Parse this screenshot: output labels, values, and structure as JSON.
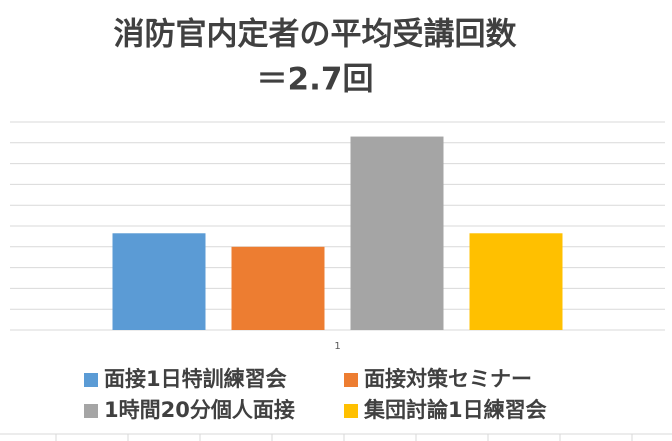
{
  "chart_data": {
    "type": "bar",
    "title": "消防官内定者の平均受講回数",
    "subtitle": "＝2.7回",
    "categories": [
      "1"
    ],
    "series": [
      {
        "name": "面接1日特訓練習会",
        "color": "#5b9bd5",
        "values": [
          4.65
        ]
      },
      {
        "name": "面接対策セミナー",
        "color": "#ed7d31",
        "values": [
          4.0
        ]
      },
      {
        "name": "1時間20分個人面接",
        "color": "#a5a5a5",
        "values": [
          9.3
        ]
      },
      {
        "name": "集団討論1日練習会",
        "color": "#ffc000",
        "values": [
          4.65
        ]
      }
    ],
    "ylim": [
      0,
      10
    ],
    "yticks": [
      0,
      1,
      2,
      3,
      4,
      5,
      6,
      7,
      8,
      9,
      10
    ],
    "grid": true,
    "legend": "bottom"
  }
}
